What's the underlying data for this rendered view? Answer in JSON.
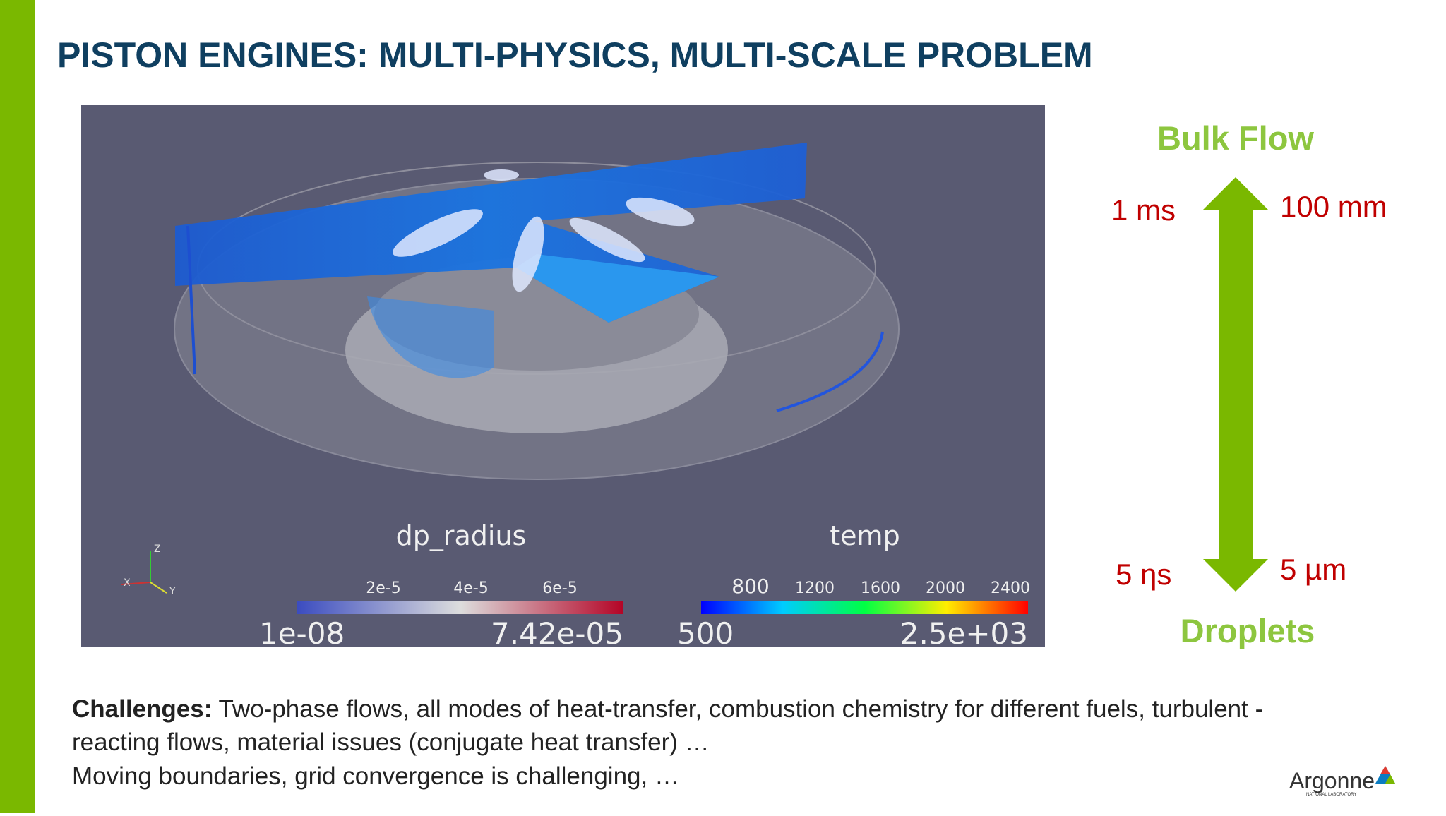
{
  "header": {
    "title": "PISTON ENGINES: MULTI-PHYSICS, MULTI-SCALE PROBLEM"
  },
  "visualization": {
    "triad": [
      "Z",
      "X",
      "Y"
    ],
    "colorbar_1": {
      "title": "dp_radius",
      "ticks": [
        "2e-5",
        "4e-5",
        "6e-5"
      ],
      "min": "1e-08",
      "max": "7.42e-05"
    },
    "colorbar_2": {
      "title": "temp",
      "ticks": [
        "800",
        "1200",
        "1600",
        "2000",
        "2400"
      ],
      "min": "500",
      "max": "2.5e+03"
    }
  },
  "scales": {
    "top": "Bulk Flow",
    "top_left": "1 ms",
    "top_right": "100 mm",
    "bottom_left": "5 ηs",
    "bottom_right": "5 µm",
    "bottom": "Droplets"
  },
  "challenges": {
    "label": "Challenges:",
    "lines": [
      " Two-phase flows, all modes of heat-transfer, combustion chemistry for different fuels, turbulent -",
      "reacting flows, material issues (conjugate heat transfer) …",
      "Moving boundaries, grid convergence is challenging, …"
    ]
  },
  "logo": {
    "name": "Argonne",
    "subtitle": "NATIONAL LABORATORY"
  }
}
